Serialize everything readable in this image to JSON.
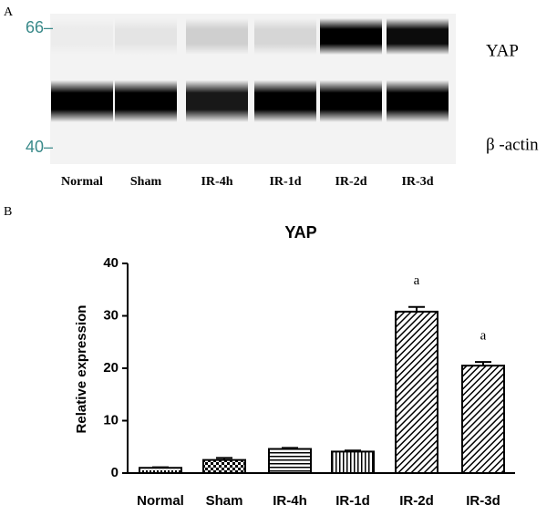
{
  "figure": {
    "panel_a": "A",
    "panel_b": "B",
    "marker_top": "66–",
    "marker_bottom": "40–",
    "band_top": "YAP",
    "band_bottom": "β -actin",
    "lanes": [
      "Normal",
      "Sham",
      "IR-4h",
      "IR-1d",
      "IR-2d",
      "IR-3d"
    ]
  },
  "chart_data": {
    "type": "bar",
    "title": "YAP",
    "y_label": "Relative expression",
    "categories": [
      "Normal",
      "Sham",
      "IR-4h",
      "IR-1d",
      "IR-2d",
      "IR-3d"
    ],
    "values": [
      1.0,
      2.5,
      4.6,
      4.1,
      30.8,
      20.5
    ],
    "errors": [
      0.1,
      0.4,
      0.2,
      0.2,
      0.9,
      0.7
    ],
    "patterns": [
      "dots",
      "checker",
      "horizontal",
      "vertical",
      "diagonal",
      "diagonal"
    ],
    "color": "#000000",
    "ylim": [
      0,
      40
    ],
    "yticks": [
      0,
      10,
      20,
      30,
      40
    ],
    "annotations": [
      {
        "label": "a",
        "x": "IR-2d"
      },
      {
        "label": "a",
        "x": "IR-3d"
      }
    ]
  }
}
